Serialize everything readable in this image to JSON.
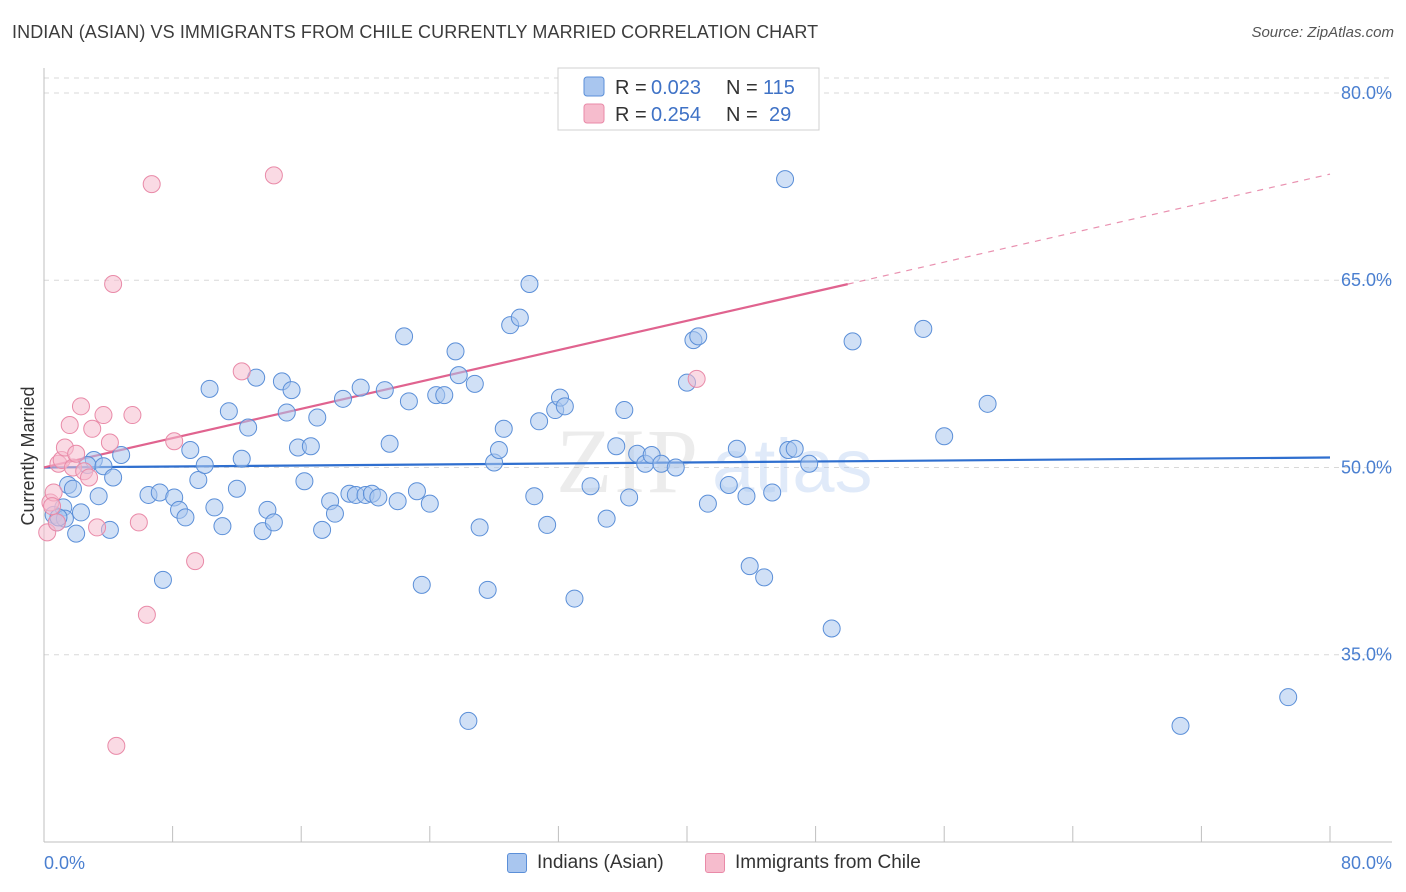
{
  "title": "INDIAN (ASIAN) VS IMMIGRANTS FROM CHILE CURRENTLY MARRIED CORRELATION CHART",
  "source": "Source: ZipAtlas.com",
  "watermark": {
    "part1": "ZIP",
    "part2": "atlas"
  },
  "colors": {
    "blue_fill": "#a9c6ef",
    "blue_stroke": "#5b8fd8",
    "blue_line": "#2f6fcf",
    "pink_fill": "#f6bccd",
    "pink_stroke": "#e98aa8",
    "pink_line": "#e0638f",
    "grid": "#d8d8d8",
    "tick_text": "#4a7fd0"
  },
  "legend": {
    "r_label": "R =",
    "n_label": "N =",
    "series": [
      {
        "r": "0.023",
        "n": "115"
      },
      {
        "r": "0.254",
        "n": "29"
      }
    ]
  },
  "bottom_legend": [
    "Indians (Asian)",
    "Immigrants from Chile"
  ],
  "chart_data": {
    "type": "scatter",
    "title": "INDIAN (ASIAN) VS IMMIGRANTS FROM CHILE CURRENTLY MARRIED CORRELATION CHART",
    "xlabel": "",
    "ylabel": "Currently Married",
    "xlim": [
      0,
      80
    ],
    "ylim": [
      20,
      82
    ],
    "x_tick_labels": [
      "0.0%",
      "80.0%"
    ],
    "y_ticks": [
      35,
      50,
      65,
      80
    ],
    "y_tick_labels": [
      "35.0%",
      "50.0%",
      "65.0%",
      "80.0%"
    ],
    "grid": true,
    "legend_position": "top-center",
    "series": [
      {
        "name": "Indians (Asian)",
        "r": 0.023,
        "n": 115,
        "trend": {
          "x": [
            0,
            80
          ],
          "y": [
            50.0,
            50.8
          ],
          "dashed_from": null
        },
        "points": [
          [
            0.6,
            46.2
          ],
          [
            0.8,
            45.6
          ],
          [
            1.2,
            46.8
          ],
          [
            1.5,
            48.6
          ],
          [
            1.3,
            45.9
          ],
          [
            1.8,
            48.3
          ],
          [
            2.0,
            44.7
          ],
          [
            2.3,
            46.4
          ],
          [
            3.1,
            50.6
          ],
          [
            3.4,
            47.7
          ],
          [
            2.7,
            50.2
          ],
          [
            4.1,
            45.0
          ],
          [
            3.7,
            50.1
          ],
          [
            4.3,
            49.2
          ],
          [
            4.8,
            51.0
          ],
          [
            6.5,
            47.8
          ],
          [
            7.2,
            48.0
          ],
          [
            7.4,
            41.0
          ],
          [
            8.1,
            47.6
          ],
          [
            8.4,
            46.6
          ],
          [
            8.8,
            46.0
          ],
          [
            9.1,
            51.4
          ],
          [
            9.6,
            49.0
          ],
          [
            10.0,
            50.2
          ],
          [
            10.3,
            56.3
          ],
          [
            10.6,
            46.8
          ],
          [
            11.1,
            45.3
          ],
          [
            11.5,
            54.5
          ],
          [
            12.0,
            48.3
          ],
          [
            12.3,
            50.7
          ],
          [
            12.7,
            53.2
          ],
          [
            13.2,
            57.2
          ],
          [
            13.6,
            44.9
          ],
          [
            13.9,
            46.6
          ],
          [
            14.3,
            45.6
          ],
          [
            14.8,
            56.9
          ],
          [
            15.1,
            54.4
          ],
          [
            15.4,
            56.2
          ],
          [
            15.8,
            51.6
          ],
          [
            16.2,
            48.9
          ],
          [
            16.6,
            51.7
          ],
          [
            17.0,
            54.0
          ],
          [
            17.3,
            45.0
          ],
          [
            17.8,
            47.3
          ],
          [
            18.1,
            46.3
          ],
          [
            18.6,
            55.5
          ],
          [
            19.0,
            47.9
          ],
          [
            19.4,
            47.8
          ],
          [
            19.7,
            56.4
          ],
          [
            20.0,
            47.8
          ],
          [
            20.4,
            47.9
          ],
          [
            20.8,
            47.6
          ],
          [
            21.2,
            56.2
          ],
          [
            21.5,
            51.9
          ],
          [
            22.0,
            47.3
          ],
          [
            22.4,
            60.5
          ],
          [
            22.7,
            55.3
          ],
          [
            23.2,
            48.1
          ],
          [
            23.5,
            40.6
          ],
          [
            24.0,
            47.1
          ],
          [
            24.4,
            55.8
          ],
          [
            24.9,
            55.8
          ],
          [
            25.6,
            59.3
          ],
          [
            25.8,
            57.4
          ],
          [
            26.8,
            56.7
          ],
          [
            27.1,
            45.2
          ],
          [
            27.6,
            40.2
          ],
          [
            28.0,
            50.4
          ],
          [
            28.3,
            51.4
          ],
          [
            28.6,
            53.1
          ],
          [
            29.0,
            61.4
          ],
          [
            29.6,
            62.0
          ],
          [
            30.2,
            64.7
          ],
          [
            30.5,
            47.7
          ],
          [
            30.8,
            53.7
          ],
          [
            31.3,
            45.4
          ],
          [
            31.8,
            54.6
          ],
          [
            32.1,
            55.6
          ],
          [
            32.4,
            54.9
          ],
          [
            33.0,
            39.5
          ],
          [
            34.0,
            48.5
          ],
          [
            35.0,
            45.9
          ],
          [
            35.6,
            51.7
          ],
          [
            36.1,
            54.6
          ],
          [
            36.4,
            47.6
          ],
          [
            36.9,
            51.1
          ],
          [
            37.4,
            50.3
          ],
          [
            37.8,
            51.0
          ],
          [
            38.4,
            50.3
          ],
          [
            39.3,
            50.0
          ],
          [
            40.0,
            56.8
          ],
          [
            40.4,
            60.2
          ],
          [
            40.7,
            60.5
          ],
          [
            41.3,
            47.1
          ],
          [
            42.6,
            48.6
          ],
          [
            43.1,
            51.5
          ],
          [
            43.7,
            47.7
          ],
          [
            43.9,
            42.1
          ],
          [
            44.8,
            41.2
          ],
          [
            45.3,
            48.0
          ],
          [
            46.3,
            51.4
          ],
          [
            46.7,
            51.5
          ],
          [
            47.6,
            50.3
          ],
          [
            49.0,
            37.1
          ],
          [
            50.3,
            60.1
          ],
          [
            54.7,
            61.1
          ],
          [
            56.0,
            52.5
          ],
          [
            58.7,
            55.1
          ],
          [
            70.7,
            29.3
          ],
          [
            77.4,
            31.6
          ],
          [
            46.1,
            73.1
          ],
          [
            26.4,
            29.7
          ],
          [
            0.9,
            46.0
          ]
        ]
      },
      {
        "name": "Immigrants from Chile",
        "r": 0.254,
        "n": 29,
        "trend": {
          "x": [
            0,
            80
          ],
          "y": [
            50.0,
            73.5
          ],
          "dashed_from": 50
        },
        "points": [
          [
            0.2,
            44.8
          ],
          [
            0.4,
            47.2
          ],
          [
            0.6,
            48.0
          ],
          [
            0.8,
            45.6
          ],
          [
            0.9,
            50.3
          ],
          [
            1.1,
            50.6
          ],
          [
            1.3,
            51.6
          ],
          [
            1.6,
            53.4
          ],
          [
            1.8,
            50.0
          ],
          [
            2.0,
            51.1
          ],
          [
            2.3,
            54.9
          ],
          [
            2.5,
            49.7
          ],
          [
            2.8,
            49.2
          ],
          [
            3.0,
            53.1
          ],
          [
            3.3,
            45.2
          ],
          [
            3.7,
            54.2
          ],
          [
            4.1,
            52.0
          ],
          [
            4.5,
            27.7
          ],
          [
            5.5,
            54.2
          ],
          [
            5.9,
            45.6
          ],
          [
            6.4,
            38.2
          ],
          [
            6.7,
            72.7
          ],
          [
            8.1,
            52.1
          ],
          [
            9.4,
            42.5
          ],
          [
            12.3,
            57.7
          ],
          [
            14.3,
            73.4
          ],
          [
            40.6,
            57.1
          ],
          [
            4.3,
            64.7
          ],
          [
            0.5,
            46.9
          ]
        ]
      }
    ]
  }
}
